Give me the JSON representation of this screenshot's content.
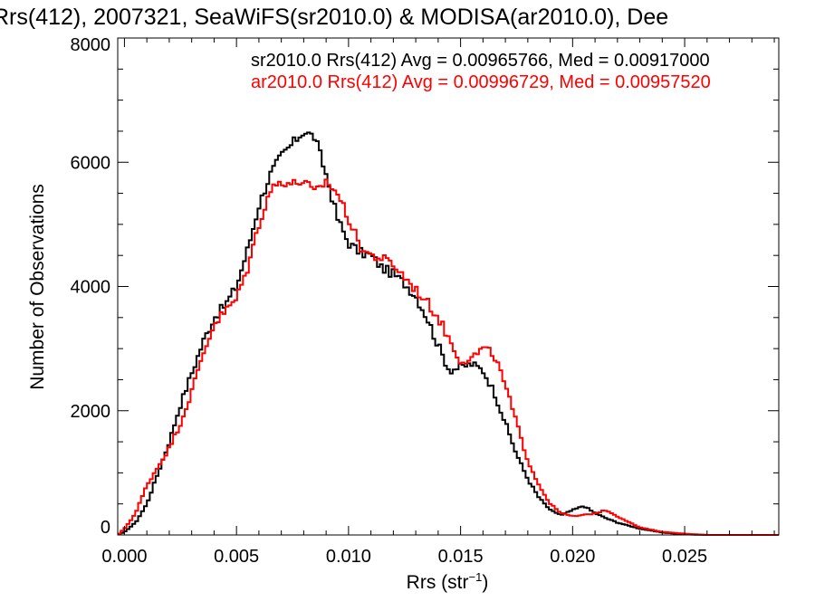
{
  "chart_data": {
    "type": "line",
    "title": "Rrs(412), 2007321, SeaWiFS(sr2010.0) & MODISA(ar2010.0), Dee",
    "xlabel": "Rrs (str",
    "xlabel_sup": "−1",
    "xlabel_end": ")",
    "ylabel": "Number of Observations",
    "xlim": [
      -0.0003,
      0.0292
    ],
    "ylim": [
      0,
      8000
    ],
    "xticks": [
      0.0,
      0.005,
      0.01,
      0.015,
      0.02,
      0.025
    ],
    "xtick_labels": [
      "0.000",
      "0.005",
      "0.010",
      "0.015",
      "0.020",
      "0.025"
    ],
    "yticks": [
      0,
      2000,
      4000,
      6000,
      8000
    ],
    "ytick_labels": [
      "0",
      "2000",
      "4000",
      "6000",
      "8000"
    ],
    "legend_position": "top-right",
    "series": [
      {
        "label": "sr2010.0 Rrs(412) Avg = 0.00965766, Med = 0.00917000",
        "color": "#000000",
        "x": [
          -0.0003,
          0.0,
          0.0005,
          0.001,
          0.0015,
          0.002,
          0.0025,
          0.003,
          0.0035,
          0.004,
          0.0045,
          0.005,
          0.0055,
          0.006,
          0.0065,
          0.007,
          0.0075,
          0.008,
          0.0085,
          0.009,
          0.0095,
          0.01,
          0.0105,
          0.011,
          0.0115,
          0.012,
          0.0125,
          0.013,
          0.0135,
          0.014,
          0.0145,
          0.015,
          0.0155,
          0.016,
          0.0165,
          0.017,
          0.0175,
          0.018,
          0.0185,
          0.019,
          0.0195,
          0.02,
          0.0205,
          0.021,
          0.0215,
          0.022,
          0.023,
          0.024,
          0.025,
          0.026,
          0.027,
          0.0292
        ],
        "y": [
          0,
          50,
          200,
          500,
          1000,
          1500,
          2100,
          2600,
          3100,
          3500,
          3700,
          4000,
          4600,
          5300,
          5800,
          6100,
          6300,
          6500,
          6400,
          5800,
          5100,
          4700,
          4550,
          4500,
          4300,
          4200,
          4050,
          3850,
          3500,
          3050,
          2650,
          2700,
          2750,
          2650,
          2300,
          1800,
          1300,
          900,
          600,
          400,
          320,
          400,
          470,
          350,
          270,
          200,
          100,
          40,
          10,
          0,
          0,
          0
        ]
      },
      {
        "label": "ar2010.0 Rrs(412) Avg = 0.00996729, Med = 0.00957520",
        "color": "#ff0000",
        "x": [
          -0.0003,
          0.0,
          0.0005,
          0.001,
          0.0015,
          0.002,
          0.0025,
          0.003,
          0.0035,
          0.004,
          0.0045,
          0.005,
          0.0055,
          0.006,
          0.0065,
          0.007,
          0.0075,
          0.008,
          0.0085,
          0.009,
          0.0095,
          0.01,
          0.0105,
          0.011,
          0.0115,
          0.012,
          0.0125,
          0.013,
          0.0135,
          0.014,
          0.0145,
          0.015,
          0.0155,
          0.016,
          0.0165,
          0.017,
          0.0175,
          0.018,
          0.0185,
          0.019,
          0.0195,
          0.02,
          0.0205,
          0.021,
          0.0215,
          0.022,
          0.023,
          0.024,
          0.025,
          0.026,
          0.027,
          0.0292
        ],
        "y": [
          0,
          100,
          350,
          800,
          1100,
          1400,
          1800,
          2300,
          2900,
          3400,
          3600,
          3800,
          4300,
          5000,
          5550,
          5700,
          5650,
          5700,
          5500,
          5700,
          5500,
          5100,
          4650,
          4500,
          4450,
          4350,
          4150,
          3950,
          3750,
          3500,
          3150,
          2800,
          2850,
          3000,
          2900,
          2400,
          1800,
          1200,
          800,
          500,
          350,
          300,
          320,
          350,
          400,
          300,
          120,
          50,
          20,
          0,
          0,
          0
        ]
      }
    ]
  }
}
